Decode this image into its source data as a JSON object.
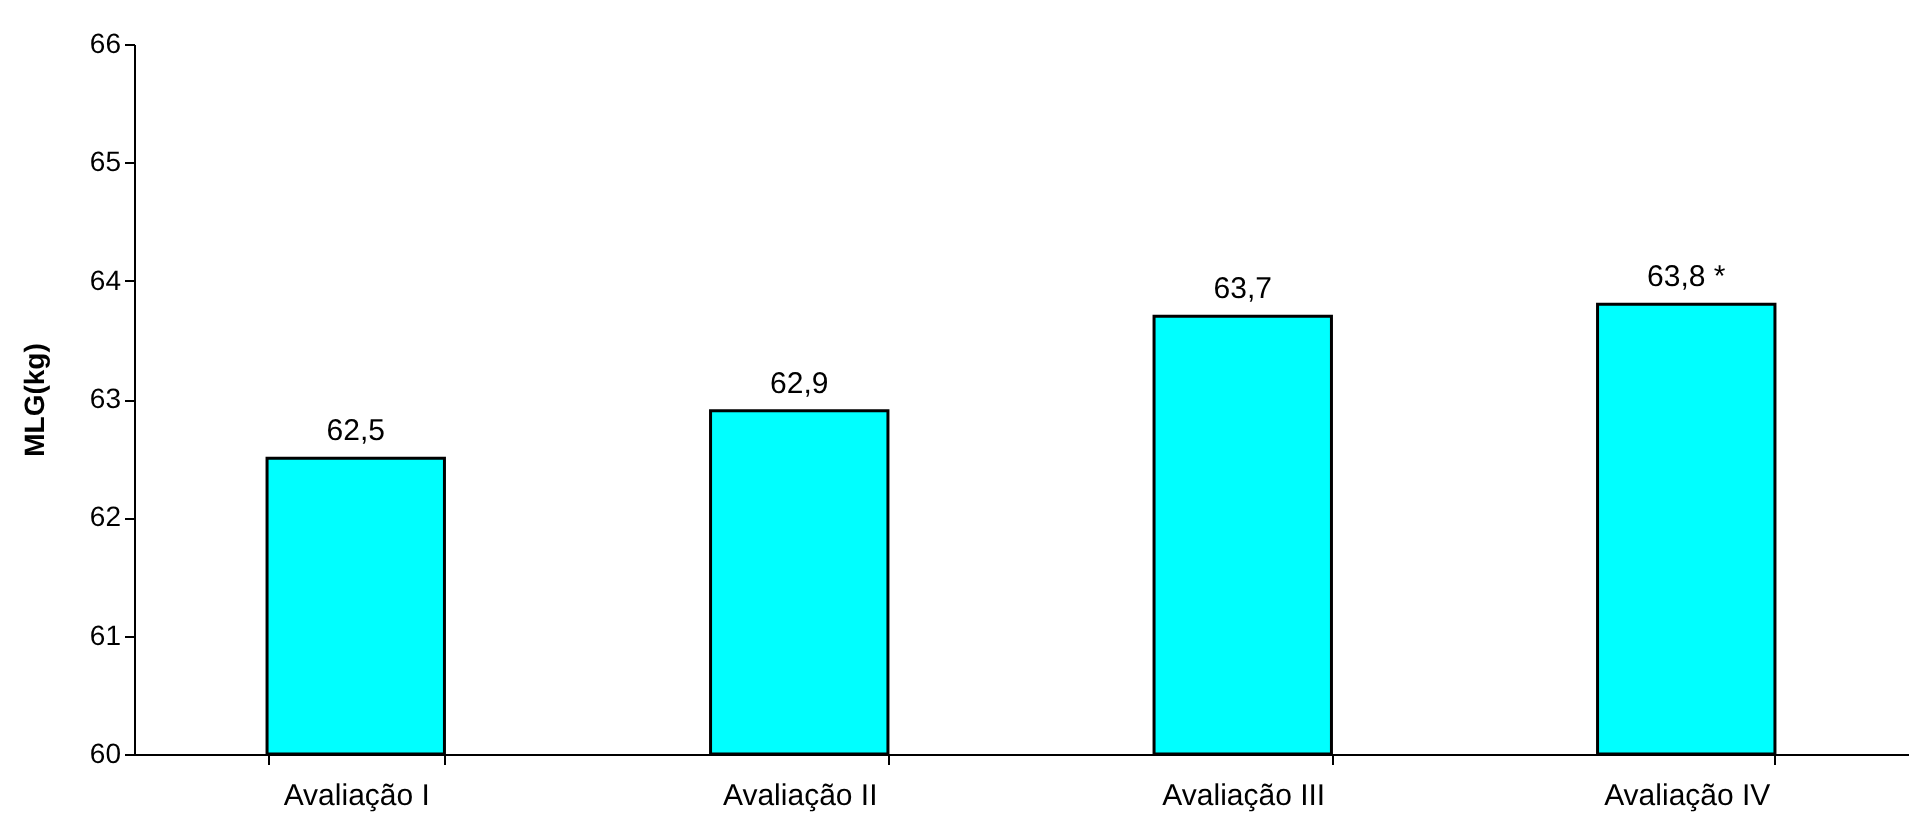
{
  "chart_data": {
    "type": "bar",
    "ylabel": "MLG(kg)",
    "categories": [
      "Avaliação I",
      "Avaliação II",
      "Avaliação III",
      "Avaliação IV"
    ],
    "values": [
      62.5,
      62.9,
      63.7,
      63.8
    ],
    "value_labels": [
      "62,5",
      "62,9",
      "63,7",
      "63,8 *"
    ],
    "color": "#00ffff",
    "ylim": [
      60,
      66
    ],
    "yticks": [
      60,
      61,
      62,
      63,
      64,
      65,
      66
    ],
    "grid": false
  }
}
